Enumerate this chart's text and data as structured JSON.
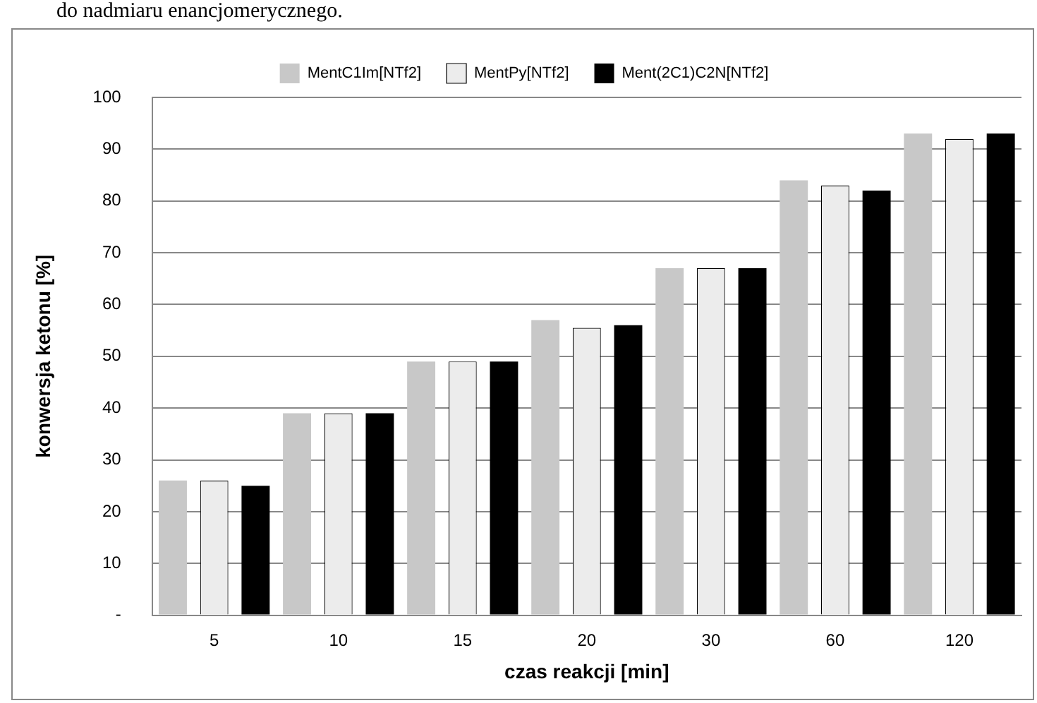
{
  "chart_data": {
    "type": "bar",
    "xlabel": "czas reakcji [min]",
    "ylabel": "konwersja ketonu [%]",
    "annotations": [
      "do nadmiaru enancjomerycznego."
    ],
    "categories": [
      "5",
      "10",
      "15",
      "20",
      "30",
      "60",
      "120"
    ],
    "series": [
      {
        "name": "MentC1Im[NTf2]",
        "color": "#c8c8c8",
        "values": [
          26,
          39,
          49,
          57,
          67,
          84,
          93
        ]
      },
      {
        "name": "MentPy[NTf2]",
        "color": "#ececec",
        "values": [
          26,
          39,
          49,
          55.5,
          67,
          83,
          92
        ]
      },
      {
        "name": "Ment(2C1)C2N[NTf2]",
        "color": "#000000",
        "values": [
          25,
          39,
          49,
          56,
          67,
          82,
          93
        ]
      }
    ],
    "ylim": [
      0,
      100
    ],
    "yticks": [
      {
        "value": 0,
        "label": "-"
      },
      10,
      20,
      30,
      40,
      50,
      60,
      70,
      80,
      90,
      100
    ],
    "grid": "y",
    "legend": "top"
  }
}
